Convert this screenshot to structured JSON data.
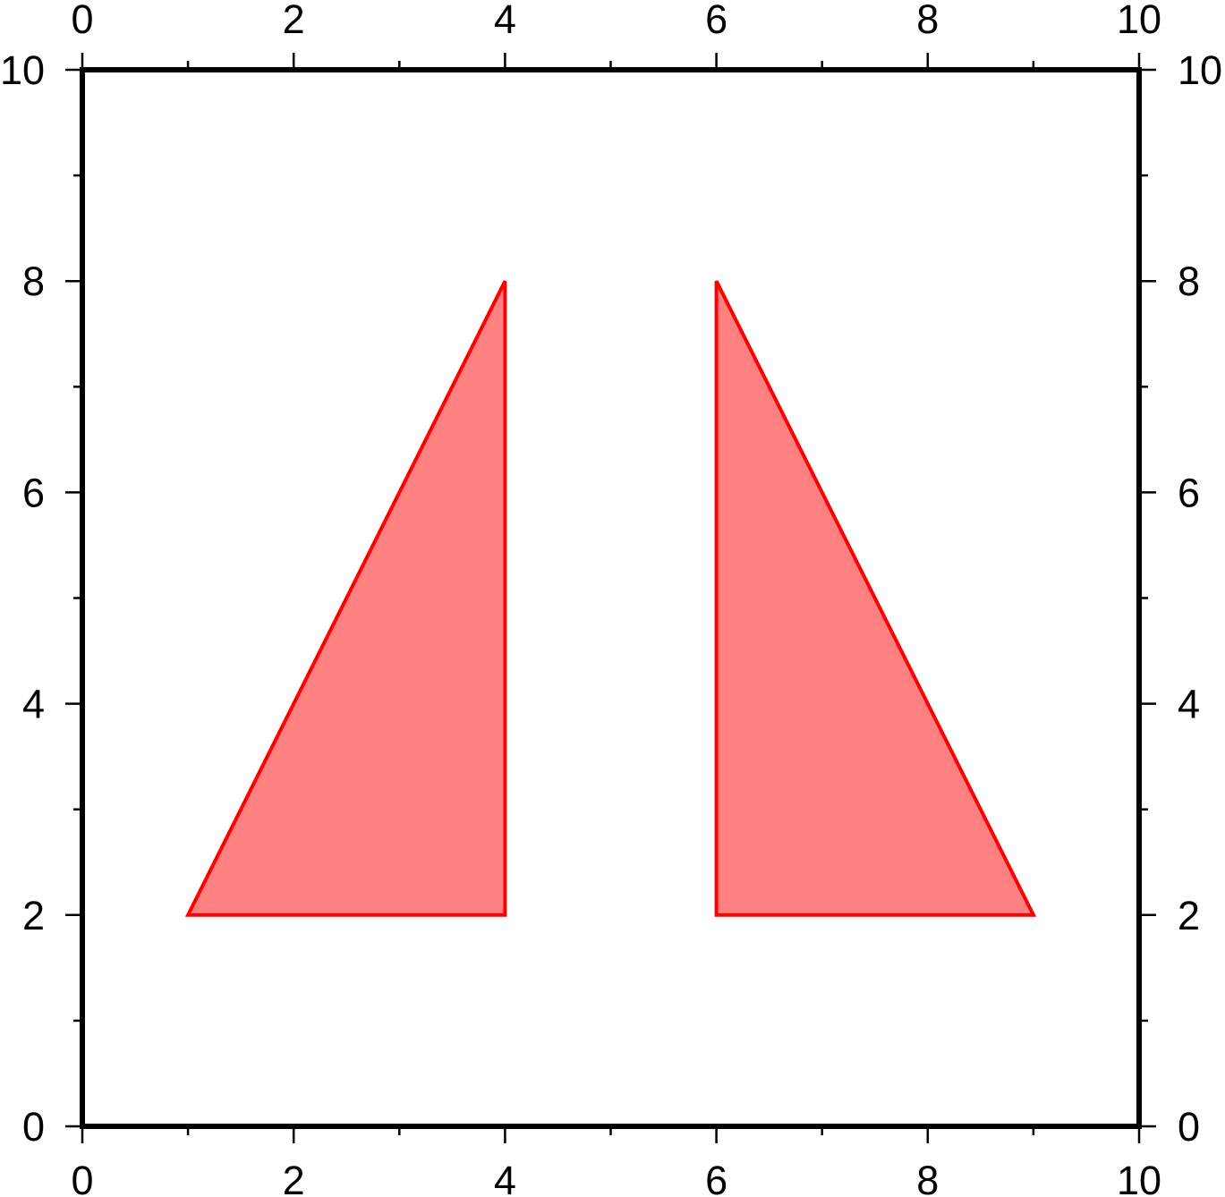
{
  "chart_data": {
    "type": "area",
    "title": "",
    "xlabel": "",
    "ylabel": "",
    "xlim": [
      0,
      10
    ],
    "ylim": [
      0,
      10
    ],
    "grid": false,
    "frame_on_all_sides": true,
    "x_major_ticks": [
      0,
      2,
      4,
      6,
      8,
      10
    ],
    "x_tick_labels": [
      "0",
      "2",
      "4",
      "6",
      "8",
      "10"
    ],
    "x_minor_ticks": [
      1,
      3,
      5,
      7,
      9
    ],
    "y_major_ticks": [
      0,
      2,
      4,
      6,
      8,
      10
    ],
    "y_tick_labels": [
      "0",
      "2",
      "4",
      "6",
      "8",
      "10"
    ],
    "y_minor_ticks": [
      1,
      3,
      5,
      7,
      9
    ],
    "fill_color": "#ff8080",
    "stroke_color": "#ff0000",
    "axis_color": "#000000",
    "polygons": [
      {
        "id": "left-triangle",
        "points": [
          [
            1,
            2
          ],
          [
            4,
            8
          ],
          [
            4,
            2
          ]
        ]
      },
      {
        "id": "right-triangle",
        "points": [
          [
            6,
            2
          ],
          [
            6,
            8
          ],
          [
            9,
            2
          ]
        ]
      }
    ]
  }
}
